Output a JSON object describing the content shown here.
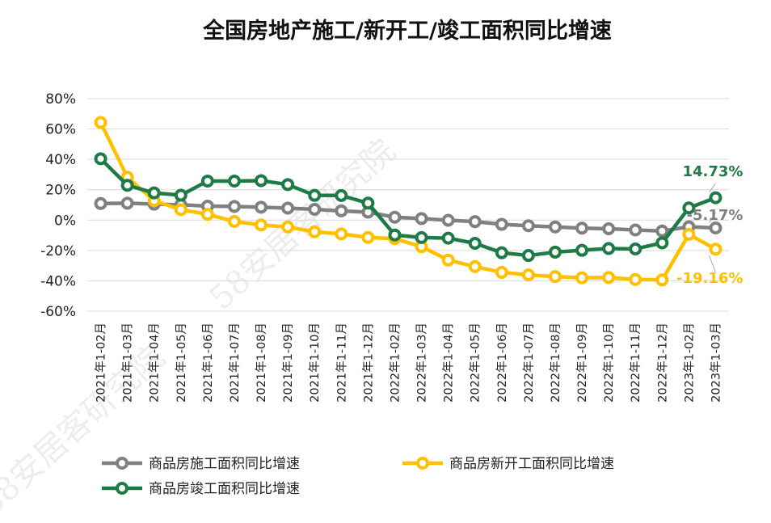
{
  "chart_data": {
    "type": "line",
    "title": "全国房地产施工/新开工/竣工面积同比增速",
    "xlabel": "",
    "ylabel": "",
    "ylim": [
      -60,
      80
    ],
    "yticks": [
      "80%",
      "60%",
      "40%",
      "20%",
      "0%",
      "-20%",
      "-40%",
      "-60%"
    ],
    "grid": true,
    "legend_position": "bottom",
    "categories": [
      "2021年1-02月",
      "2021年1-03月",
      "2021年1-04月",
      "2021年1-05月",
      "2021年1-06月",
      "2021年1-07月",
      "2021年1-08月",
      "2021年1-09月",
      "2021年1-10月",
      "2021年1-11月",
      "2021年1-12月",
      "2022年1-02月",
      "2022年1-03月",
      "2022年1-04月",
      "2022年1-05月",
      "2022年1-06月",
      "2022年1-07月",
      "2022年1-08月",
      "2022年1-09月",
      "2022年1-10月",
      "2022年1-11月",
      "2022年1-12月",
      "2023年1-02月",
      "2023年1-03月"
    ],
    "series": [
      {
        "name": "商品房施工面积同比增速",
        "color": "#808080",
        "values": [
          10.9,
          11.1,
          10.5,
          10.1,
          9.2,
          9.0,
          8.5,
          7.9,
          7.1,
          6.1,
          5.2,
          1.9,
          1.0,
          -0.1,
          -1.0,
          -2.8,
          -3.7,
          -4.5,
          -5.3,
          -5.7,
          -6.5,
          -7.2,
          -4.4,
          -5.17
        ]
      },
      {
        "name": "商品房新开工面积同比增速",
        "color": "#FFC000",
        "values": [
          64.3,
          28.2,
          12.8,
          6.9,
          3.8,
          -0.9,
          -3.2,
          -4.5,
          -7.7,
          -9.1,
          -11.4,
          -12.2,
          -17.5,
          -26.3,
          -30.6,
          -34.4,
          -36.1,
          -37.2,
          -38.0,
          -37.8,
          -39.1,
          -39.4,
          -9.4,
          -19.16
        ]
      },
      {
        "name": "商品房竣工面积同比增速",
        "color": "#1E7B45",
        "values": [
          40.4,
          22.9,
          17.9,
          16.4,
          25.7,
          25.7,
          26.0,
          23.4,
          16.3,
          16.2,
          11.2,
          -9.8,
          -11.5,
          -11.9,
          -15.3,
          -21.5,
          -23.3,
          -21.1,
          -19.9,
          -18.7,
          -19.0,
          -15.0,
          8.0,
          14.73
        ]
      }
    ],
    "annotations": [
      {
        "series": 2,
        "index": 23,
        "text": "14.73%",
        "color": "#1E7B45"
      },
      {
        "series": 0,
        "index": 23,
        "text": "-5.17%",
        "color": "#808080"
      },
      {
        "series": 1,
        "index": 23,
        "text": "-19.16%",
        "color": "#FFC000"
      }
    ]
  }
}
